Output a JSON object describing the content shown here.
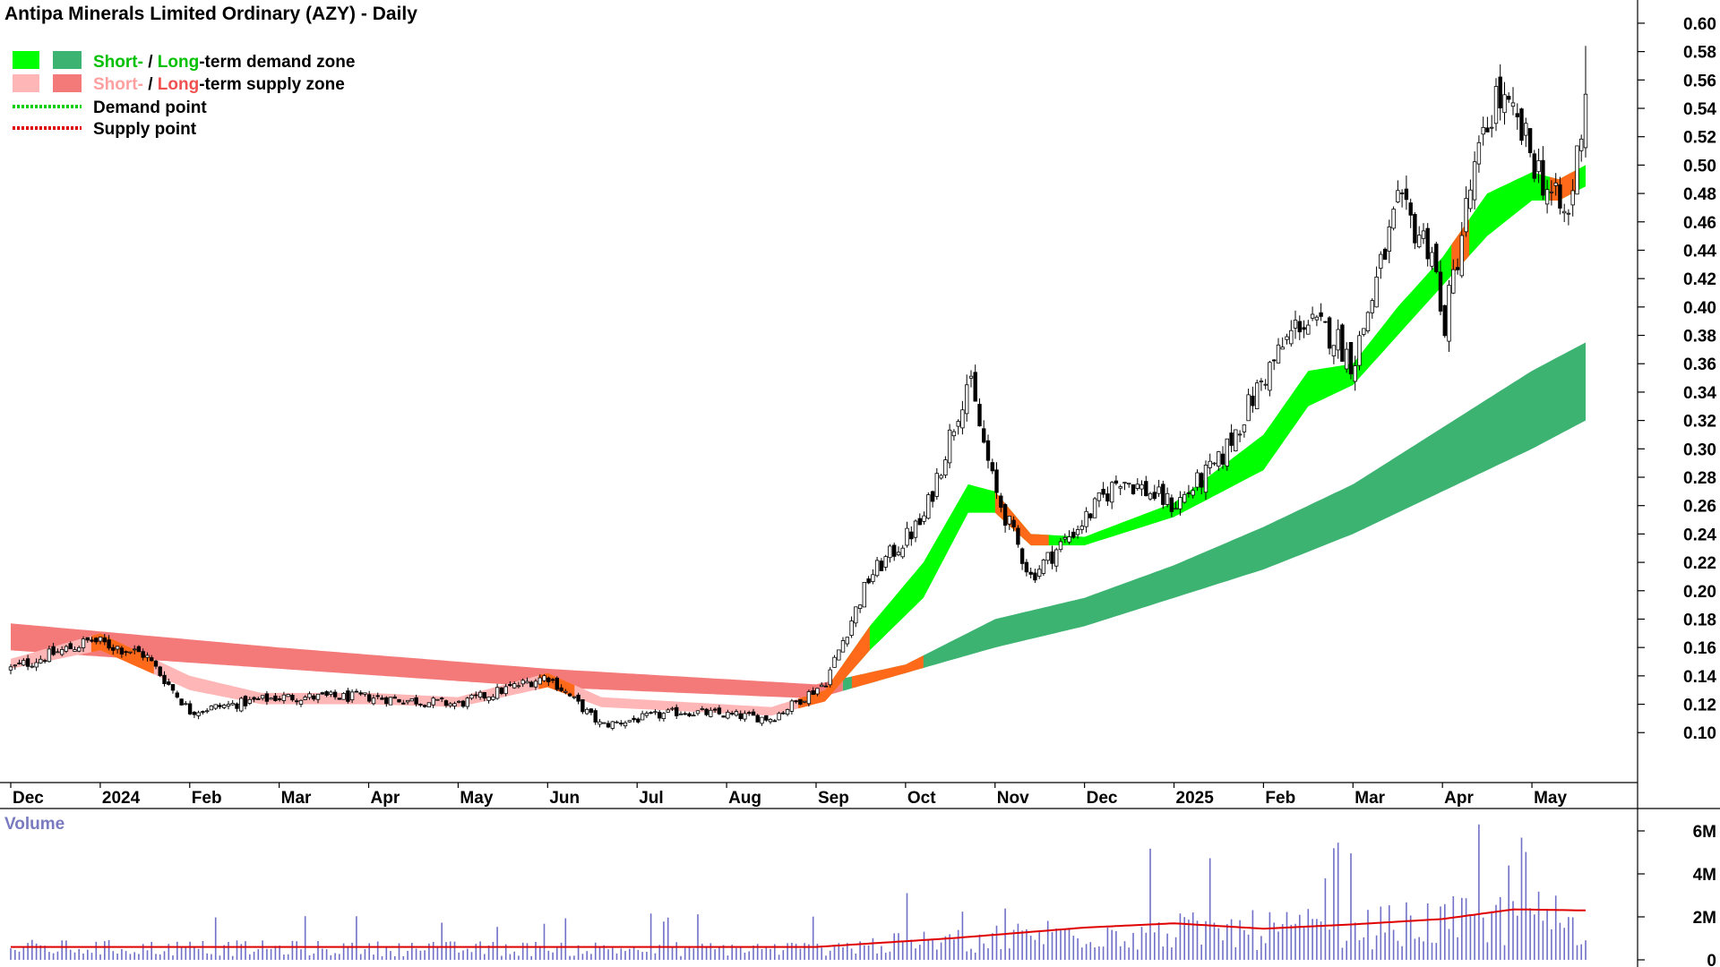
{
  "title": "Antipa Minerals Limited Ordinary (AZY) - Daily",
  "legend": {
    "demand_short": "Short-",
    "demand_sep": " / ",
    "demand_long": "Long",
    "demand_rest": "-term demand zone",
    "supply_short": "Short-",
    "supply_sep": " / ",
    "supply_long": "Long",
    "supply_rest": "-term supply zone",
    "demand_point": "Demand point",
    "supply_point": "Supply point"
  },
  "colors": {
    "short_demand": "#00ff00",
    "long_demand": "#3cb371",
    "short_supply": "#ffb6b6",
    "long_supply": "#f47a7a",
    "zone_cross": "#ff6a1a",
    "volume_bar": "#7070c8",
    "volume_ma": "#e00000",
    "candle": "#000000"
  },
  "volume_label": "Volume",
  "chart_data": [
    {
      "type": "candlestick",
      "title": "Antipa Minerals Limited Ordinary (AZY) - Daily",
      "x_labels": [
        "Dec",
        "2024",
        "Feb",
        "Mar",
        "Apr",
        "May",
        "Jun",
        "Jul",
        "Aug",
        "Sep",
        "Oct",
        "Nov",
        "Dec",
        "2025",
        "Feb",
        "Mar",
        "Apr",
        "May"
      ],
      "y_ticks": [
        "0.60",
        "0.58",
        "0.56",
        "0.54",
        "0.52",
        "0.50",
        "0.48",
        "0.46",
        "0.44",
        "0.42",
        "0.40",
        "0.38",
        "0.36",
        "0.34",
        "0.32",
        "0.30",
        "0.28",
        "0.26",
        "0.24",
        "0.22",
        "0.20",
        "0.18",
        "0.16",
        "0.14",
        "0.12",
        "0.10"
      ],
      "ylim": [
        0.085,
        0.605
      ],
      "price_anchors": [
        {
          "month": 0,
          "close": 0.145
        },
        {
          "month": 0.9,
          "close": 0.165
        },
        {
          "month": 1.5,
          "close": 0.155
        },
        {
          "month": 2.0,
          "close": 0.115
        },
        {
          "month": 3.0,
          "close": 0.125
        },
        {
          "month": 4.0,
          "close": 0.125
        },
        {
          "month": 5.0,
          "close": 0.12
        },
        {
          "month": 6.0,
          "close": 0.14
        },
        {
          "month": 6.6,
          "close": 0.105
        },
        {
          "month": 7.5,
          "close": 0.115
        },
        {
          "month": 8.5,
          "close": 0.11
        },
        {
          "month": 9.1,
          "close": 0.135
        },
        {
          "month": 9.6,
          "close": 0.21
        },
        {
          "month": 10.2,
          "close": 0.25
        },
        {
          "month": 10.7,
          "close": 0.35
        },
        {
          "month": 11.0,
          "close": 0.27
        },
        {
          "month": 11.4,
          "close": 0.21
        },
        {
          "month": 12.0,
          "close": 0.25
        },
        {
          "month": 12.4,
          "close": 0.28
        },
        {
          "month": 13.0,
          "close": 0.26
        },
        {
          "month": 13.5,
          "close": 0.29
        },
        {
          "month": 14.0,
          "close": 0.35
        },
        {
          "month": 14.4,
          "close": 0.39
        },
        {
          "month": 14.8,
          "close": 0.38
        },
        {
          "month": 15.0,
          "close": 0.36
        },
        {
          "month": 15.5,
          "close": 0.47
        },
        {
          "month": 15.9,
          "close": 0.44
        },
        {
          "month": 16.0,
          "close": 0.38
        },
        {
          "month": 16.3,
          "close": 0.48
        },
        {
          "month": 16.6,
          "close": 0.55
        },
        {
          "month": 16.9,
          "close": 0.52
        },
        {
          "month": 17.2,
          "close": 0.48
        },
        {
          "month": 17.4,
          "close": 0.46
        },
        {
          "month": 17.6,
          "close": 0.55
        }
      ],
      "short_term_zone": [
        {
          "month": 0,
          "upper": 0.152,
          "lower": 0.145
        },
        {
          "month": 1.0,
          "upper": 0.17,
          "lower": 0.158
        },
        {
          "month": 2.0,
          "upper": 0.14,
          "lower": 0.13
        },
        {
          "month": 2.8,
          "upper": 0.128,
          "lower": 0.12
        },
        {
          "month": 4.0,
          "upper": 0.128,
          "lower": 0.12
        },
        {
          "month": 5.0,
          "upper": 0.125,
          "lower": 0.118
        },
        {
          "month": 6.0,
          "upper": 0.142,
          "lower": 0.132
        },
        {
          "month": 6.6,
          "upper": 0.125,
          "lower": 0.118
        },
        {
          "month": 8.5,
          "upper": 0.118,
          "lower": 0.112
        },
        {
          "month": 9.1,
          "upper": 0.13,
          "lower": 0.122
        },
        {
          "month": 9.6,
          "upper": 0.175,
          "lower": 0.158
        },
        {
          "month": 10.2,
          "upper": 0.22,
          "lower": 0.195
        },
        {
          "month": 10.7,
          "upper": 0.275,
          "lower": 0.255
        },
        {
          "month": 11.0,
          "upper": 0.27,
          "lower": 0.255
        },
        {
          "month": 11.4,
          "upper": 0.24,
          "lower": 0.232
        },
        {
          "month": 12.0,
          "upper": 0.238,
          "lower": 0.232
        },
        {
          "month": 13.0,
          "upper": 0.262,
          "lower": 0.252
        },
        {
          "month": 14.0,
          "upper": 0.31,
          "lower": 0.285
        },
        {
          "month": 14.5,
          "upper": 0.355,
          "lower": 0.33
        },
        {
          "month": 15.0,
          "upper": 0.36,
          "lower": 0.345
        },
        {
          "month": 15.5,
          "upper": 0.4,
          "lower": 0.38
        },
        {
          "month": 16.0,
          "upper": 0.435,
          "lower": 0.415
        },
        {
          "month": 16.5,
          "upper": 0.48,
          "lower": 0.45
        },
        {
          "month": 17.0,
          "upper": 0.495,
          "lower": 0.475
        },
        {
          "month": 17.3,
          "upper": 0.49,
          "lower": 0.475
        },
        {
          "month": 17.6,
          "upper": 0.5,
          "lower": 0.485
        }
      ],
      "long_term_zone": [
        {
          "month": 0,
          "upper": 0.177,
          "lower": 0.158
        },
        {
          "month": 3.0,
          "upper": 0.16,
          "lower": 0.145
        },
        {
          "month": 6.0,
          "upper": 0.145,
          "lower": 0.132
        },
        {
          "month": 9.0,
          "upper": 0.134,
          "lower": 0.124
        },
        {
          "month": 10.0,
          "upper": 0.148,
          "lower": 0.142
        },
        {
          "month": 11.0,
          "upper": 0.18,
          "lower": 0.16
        },
        {
          "month": 12.0,
          "upper": 0.195,
          "lower": 0.175
        },
        {
          "month": 13.0,
          "upper": 0.218,
          "lower": 0.195
        },
        {
          "month": 14.0,
          "upper": 0.245,
          "lower": 0.215
        },
        {
          "month": 15.0,
          "upper": 0.275,
          "lower": 0.24
        },
        {
          "month": 16.0,
          "upper": 0.315,
          "lower": 0.27
        },
        {
          "month": 17.0,
          "upper": 0.355,
          "lower": 0.3
        },
        {
          "month": 17.6,
          "upper": 0.375,
          "lower": 0.32
        }
      ],
      "zone_phases": [
        {
          "from_month": 0,
          "to_month": 9.3,
          "state": "supply"
        },
        {
          "from_month": 9.3,
          "to_month": 17.6,
          "state": "demand"
        }
      ],
      "last_close": 0.55,
      "last_high": 0.584
    },
    {
      "type": "bar",
      "title": "Volume",
      "y_ticks": [
        "6M",
        "4M",
        "2M",
        "0"
      ],
      "ylim": [
        0,
        6500000
      ],
      "volume_anchors": [
        {
          "month": 0,
          "avg": 700000
        },
        {
          "month": 5.0,
          "avg": 650000
        },
        {
          "month": 8.9,
          "avg": 650000
        },
        {
          "month": 10.5,
          "avg": 1100000
        },
        {
          "month": 12.0,
          "avg": 1650000
        },
        {
          "month": 13.0,
          "avg": 1650000
        },
        {
          "month": 15.0,
          "avg": 1800000
        },
        {
          "month": 17.0,
          "avg": 2500000
        },
        {
          "month": 17.6,
          "avg": 2400000
        }
      ],
      "volume_ma_anchors": [
        {
          "month": 0,
          "value": 600000
        },
        {
          "month": 9.0,
          "value": 600000
        },
        {
          "month": 10.5,
          "value": 1000000
        },
        {
          "month": 12.0,
          "value": 1500000
        },
        {
          "month": 13.0,
          "value": 1700000
        },
        {
          "month": 14.0,
          "value": 1450000
        },
        {
          "month": 15.0,
          "value": 1650000
        },
        {
          "month": 16.0,
          "value": 1900000
        },
        {
          "month": 16.8,
          "value": 2350000
        },
        {
          "month": 17.6,
          "value": 2300000
        }
      ]
    }
  ]
}
